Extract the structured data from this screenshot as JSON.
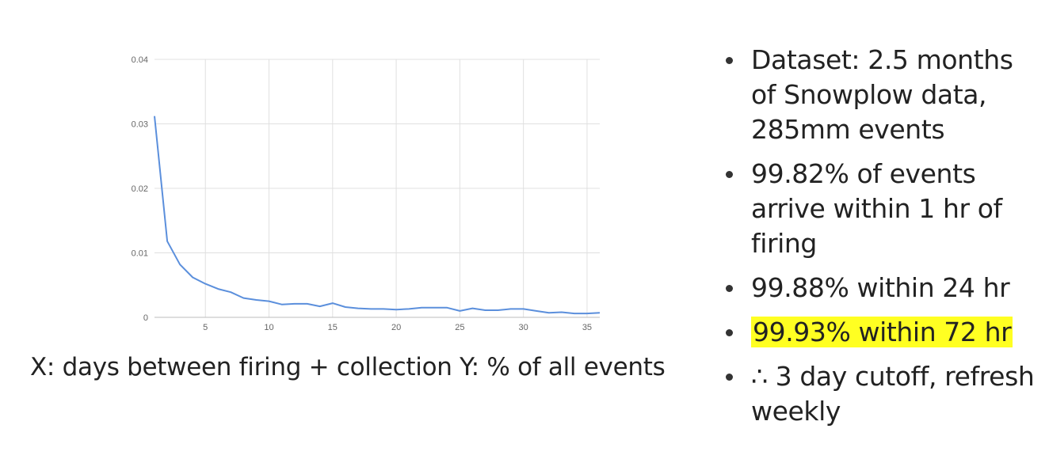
{
  "caption": "X: days between firing + collection Y: % of all events",
  "bullets": [
    {
      "text": "Dataset: 2.5 months of Snowplow data, 285mm events",
      "highlighted": false
    },
    {
      "text": "99.82% of events arrive within 1 hr of firing",
      "highlighted": false
    },
    {
      "text": "99.88% within 24 hr",
      "highlighted": false
    },
    {
      "text": "99.93% within 72 hr",
      "highlighted": true
    },
    {
      "text": "∴ 3 day cutoff, refresh weekly",
      "highlighted": false
    }
  ],
  "colors": {
    "line": "#5b8fdc",
    "grid": "#e0e0e0",
    "highlight": "#ffff22"
  },
  "chart_data": {
    "type": "line",
    "title": "",
    "xlabel": "",
    "ylabel": "",
    "xlim": [
      1,
      36
    ],
    "ylim": [
      0,
      0.04
    ],
    "x_ticks": [
      5,
      10,
      15,
      20,
      25,
      30,
      35
    ],
    "y_ticks": [
      0,
      0.01,
      0.02,
      0.03,
      0.04
    ],
    "y_tick_labels": [
      "0",
      "0.01",
      "0.02",
      "0.03",
      "0.04"
    ],
    "grid": true,
    "series": [
      {
        "x": [
          1,
          2,
          3,
          4,
          5,
          6,
          7,
          8,
          9,
          10,
          11,
          12,
          13,
          14,
          15,
          16,
          17,
          18,
          19,
          20,
          21,
          22,
          23,
          24,
          25,
          26,
          27,
          28,
          29,
          30,
          31,
          32,
          33,
          34,
          35,
          36
        ],
        "values": [
          0.0312,
          0.0118,
          0.0082,
          0.0062,
          0.0052,
          0.0044,
          0.0039,
          0.003,
          0.0027,
          0.0025,
          0.002,
          0.0021,
          0.0021,
          0.0017,
          0.0022,
          0.0016,
          0.0014,
          0.0013,
          0.0013,
          0.0012,
          0.0013,
          0.0015,
          0.0015,
          0.0015,
          0.001,
          0.0014,
          0.0011,
          0.0011,
          0.0013,
          0.0013,
          0.001,
          0.0007,
          0.0008,
          0.0006,
          0.0006,
          0.0007
        ]
      }
    ]
  }
}
